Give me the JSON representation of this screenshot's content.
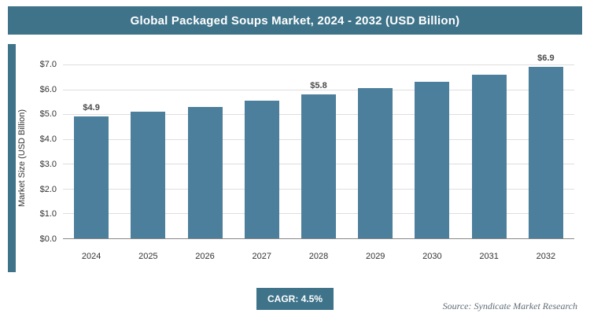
{
  "header": {
    "title": "Global Packaged Soups Market, 2024 - 2032 (USD Billion)"
  },
  "chart_data": {
    "type": "bar",
    "title": "Global Packaged Soups Market, 2024 - 2032 (USD Billion)",
    "categories": [
      "2024",
      "2025",
      "2026",
      "2027",
      "2028",
      "2029",
      "2030",
      "2031",
      "2032"
    ],
    "values": [
      4.9,
      5.1,
      5.3,
      5.55,
      5.8,
      6.05,
      6.3,
      6.6,
      6.9
    ],
    "bar_labels": [
      "$4.9",
      "",
      "",
      "",
      "$5.8",
      "",
      "",
      "",
      "$6.9"
    ],
    "xlabel": "",
    "ylabel": "Market Size (USD Billion)",
    "ylim": [
      0,
      7
    ],
    "ytick_labels": [
      "$0.0",
      "$1.0",
      "$2.0",
      "$3.0",
      "$4.0",
      "$5.0",
      "$6.0",
      "$7.0"
    ],
    "grid": true,
    "legend": "none",
    "bar_color": "#4B7F9B"
  },
  "footer": {
    "cagr_label": "CAGR: 4.5%",
    "source": "Source: Syndicate Market Research"
  },
  "colors": {
    "accent": "#3E7389",
    "bar": "#4B7F9B"
  }
}
